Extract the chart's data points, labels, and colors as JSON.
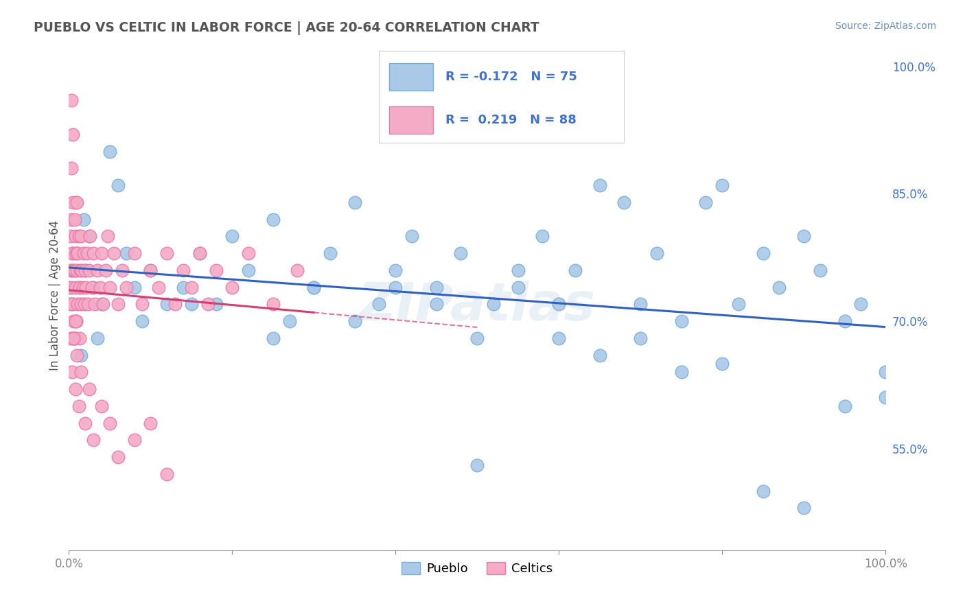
{
  "title": "PUEBLO VS CELTIC IN LABOR FORCE | AGE 20-64 CORRELATION CHART",
  "source": "Source: ZipAtlas.com",
  "ylabel": "In Labor Force | Age 20-64",
  "xlim": [
    0.0,
    1.0
  ],
  "ylim": [
    0.43,
    1.03
  ],
  "x_ticks": [
    0.0,
    0.2,
    0.4,
    0.6,
    0.8,
    1.0
  ],
  "x_tick_labels": [
    "0.0%",
    "",
    "",
    "",
    "",
    "100.0%"
  ],
  "y_tick_labels_right": [
    "55.0%",
    "70.0%",
    "85.0%",
    "100.0%"
  ],
  "y_ticks_right": [
    0.55,
    0.7,
    0.85,
    1.0
  ],
  "pueblo_color": "#aac8e8",
  "celtics_color": "#f5aac5",
  "pueblo_edge_color": "#7aafd4",
  "celtics_edge_color": "#e87aaa",
  "trend_pueblo_color": "#3060c0",
  "trend_celtics_color": "#d04070",
  "legend_pueblo_label": "Pueblo",
  "legend_celtics_label": "Celtics",
  "R_pueblo": -0.172,
  "N_pueblo": 75,
  "R_celtics": 0.219,
  "N_celtics": 88,
  "watermark": "ZIPatlas",
  "background_color": "#ffffff",
  "grid_color": "#c8d4e8",
  "pueblo_x": [
    0.0,
    0.003,
    0.005,
    0.007,
    0.008,
    0.009,
    0.01,
    0.012,
    0.015,
    0.018,
    0.02,
    0.025,
    0.03,
    0.035,
    0.04,
    0.05,
    0.06,
    0.07,
    0.08,
    0.09,
    0.1,
    0.12,
    0.14,
    0.16,
    0.18,
    0.2,
    0.22,
    0.25,
    0.27,
    0.3,
    0.32,
    0.35,
    0.38,
    0.4,
    0.42,
    0.45,
    0.48,
    0.5,
    0.52,
    0.55,
    0.58,
    0.6,
    0.62,
    0.65,
    0.68,
    0.7,
    0.72,
    0.75,
    0.78,
    0.8,
    0.82,
    0.85,
    0.87,
    0.9,
    0.92,
    0.95,
    0.97,
    1.0,
    0.3,
    0.4,
    0.5,
    0.6,
    0.7,
    0.8,
    0.9,
    1.0,
    0.15,
    0.25,
    0.35,
    0.45,
    0.55,
    0.65,
    0.75,
    0.85,
    0.95
  ],
  "pueblo_y": [
    0.74,
    0.76,
    0.72,
    0.68,
    0.84,
    0.7,
    0.78,
    0.74,
    0.66,
    0.82,
    0.76,
    0.8,
    0.74,
    0.68,
    0.72,
    0.9,
    0.86,
    0.78,
    0.74,
    0.7,
    0.76,
    0.72,
    0.74,
    0.78,
    0.72,
    0.8,
    0.76,
    0.82,
    0.7,
    0.74,
    0.78,
    0.84,
    0.72,
    0.76,
    0.8,
    0.74,
    0.78,
    0.68,
    0.72,
    0.76,
    0.8,
    0.72,
    0.76,
    0.86,
    0.84,
    0.72,
    0.78,
    0.7,
    0.84,
    0.86,
    0.72,
    0.78,
    0.74,
    0.8,
    0.76,
    0.7,
    0.72,
    0.64,
    0.74,
    0.74,
    0.53,
    0.68,
    0.68,
    0.65,
    0.48,
    0.61,
    0.72,
    0.68,
    0.7,
    0.72,
    0.74,
    0.66,
    0.64,
    0.5,
    0.6
  ],
  "celtics_x": [
    0.001,
    0.001,
    0.002,
    0.002,
    0.003,
    0.003,
    0.003,
    0.004,
    0.004,
    0.005,
    0.005,
    0.005,
    0.006,
    0.006,
    0.007,
    0.007,
    0.007,
    0.008,
    0.008,
    0.009,
    0.009,
    0.01,
    0.01,
    0.011,
    0.011,
    0.012,
    0.013,
    0.013,
    0.014,
    0.015,
    0.015,
    0.016,
    0.017,
    0.018,
    0.019,
    0.02,
    0.021,
    0.022,
    0.023,
    0.025,
    0.026,
    0.028,
    0.03,
    0.032,
    0.035,
    0.038,
    0.04,
    0.042,
    0.045,
    0.048,
    0.05,
    0.055,
    0.06,
    0.065,
    0.07,
    0.08,
    0.09,
    0.1,
    0.11,
    0.12,
    0.13,
    0.14,
    0.15,
    0.16,
    0.17,
    0.18,
    0.2,
    0.22,
    0.25,
    0.28,
    0.004,
    0.006,
    0.008,
    0.01,
    0.012,
    0.015,
    0.02,
    0.025,
    0.03,
    0.04,
    0.05,
    0.06,
    0.08,
    0.1,
    0.12,
    0.003,
    0.005,
    0.008
  ],
  "celtics_y": [
    0.72,
    0.68,
    0.8,
    0.76,
    0.88,
    0.82,
    0.74,
    0.78,
    0.72,
    0.84,
    0.78,
    0.68,
    0.76,
    0.7,
    0.82,
    0.76,
    0.68,
    0.8,
    0.74,
    0.78,
    0.7,
    0.84,
    0.76,
    0.72,
    0.78,
    0.8,
    0.74,
    0.68,
    0.76,
    0.8,
    0.72,
    0.76,
    0.74,
    0.78,
    0.72,
    0.76,
    0.74,
    0.78,
    0.72,
    0.76,
    0.8,
    0.74,
    0.78,
    0.72,
    0.76,
    0.74,
    0.78,
    0.72,
    0.76,
    0.8,
    0.74,
    0.78,
    0.72,
    0.76,
    0.74,
    0.78,
    0.72,
    0.76,
    0.74,
    0.78,
    0.72,
    0.76,
    0.74,
    0.78,
    0.72,
    0.76,
    0.74,
    0.78,
    0.72,
    0.76,
    0.64,
    0.68,
    0.62,
    0.66,
    0.6,
    0.64,
    0.58,
    0.62,
    0.56,
    0.6,
    0.58,
    0.54,
    0.56,
    0.58,
    0.52,
    0.96,
    0.92,
    0.7
  ]
}
